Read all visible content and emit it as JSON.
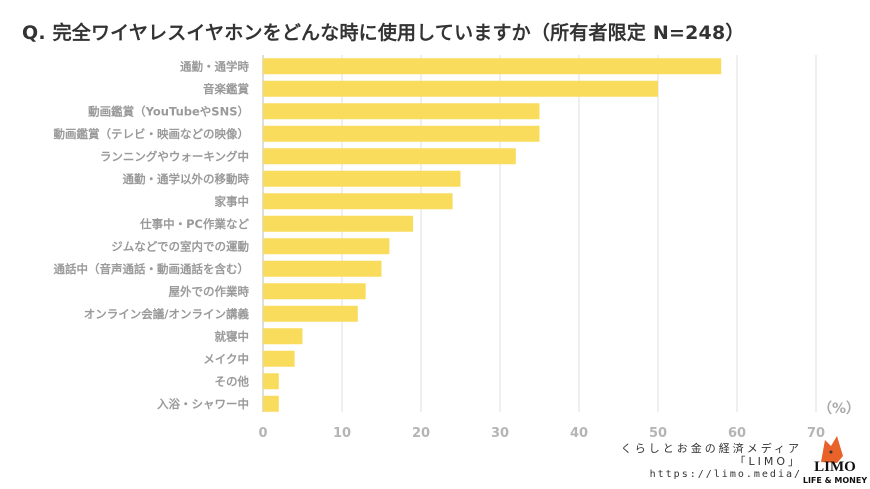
{
  "title": "Q. 完全ワイヤレスイヤホンをどんな時に使用していますか（所有者限定 N=248）",
  "chart_data": {
    "type": "bar",
    "orientation": "horizontal",
    "title": "Q. 完全ワイヤレスイヤホンをどんな時に使用していますか（所有者限定 N=248）",
    "categories": [
      "通勤・通学時",
      "音楽鑑賞",
      "動画鑑賞（YouTubeやSNS）",
      "動画鑑賞（テレビ・映画などの映像）",
      "ランニングやウォーキング中",
      "通勤・通学以外の移動時",
      "家事中",
      "仕事中・PC作業など",
      "ジムなどでの室内での運動",
      "通話中（音声通話・動画通話を含む）",
      "屋外での作業時",
      "オンライン会議/オンライン講義",
      "就寝中",
      "メイク中",
      "その他",
      "入浴・シャワー中"
    ],
    "values": [
      58,
      50,
      35,
      35,
      32,
      25,
      24,
      19,
      16,
      15,
      13,
      12,
      5,
      4,
      2,
      2
    ],
    "xlim": [
      0,
      70
    ],
    "xticks": [
      "0",
      "10",
      "20",
      "30",
      "40",
      "50",
      "60",
      "70"
    ],
    "unit_label": "（%）",
    "grid": true,
    "bar_color": "#f9dc5c"
  },
  "branding": {
    "tagline": "くらしとお金の経済メディア",
    "name": "「LIMO」",
    "url": "https://limo.media/",
    "logo_text": "LIMO",
    "logo_sub": "LIFE & MONEY"
  }
}
